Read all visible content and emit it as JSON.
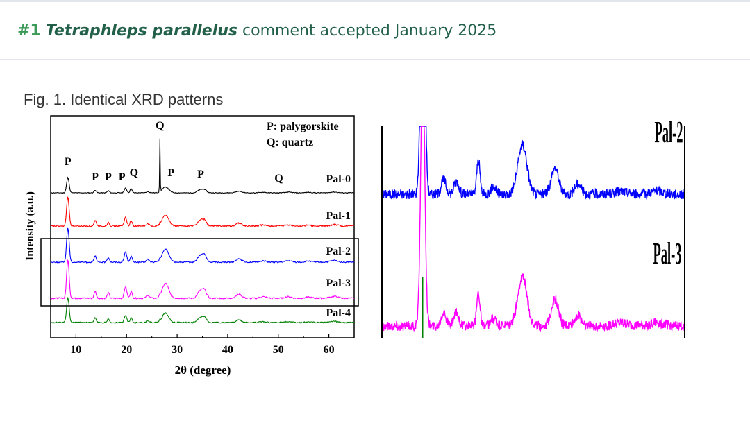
{
  "header": {
    "number": "#1",
    "species": "Tetraphleps parallelus",
    "rest": "comment accepted January 2025"
  },
  "figure": {
    "caption": "Fig. 1. Identical XRD patterns"
  },
  "chart_data": [
    {
      "type": "line",
      "xlabel": "2θ (degree)",
      "ylabel": "Intensity (a.u.)",
      "xlim": [
        5,
        65
      ],
      "xticks": [
        10,
        20,
        30,
        40,
        50,
        60
      ],
      "y_ticks_shown": false,
      "legend_text": [
        "P: palygorskite",
        "Q: quartz"
      ],
      "peak_labels": [
        {
          "label": "P",
          "two_theta": 8.4
        },
        {
          "label": "P",
          "two_theta": 13.8
        },
        {
          "label": "P",
          "two_theta": 16.4
        },
        {
          "label": "P",
          "two_theta": 19.8
        },
        {
          "label": "Q",
          "two_theta": 20.9
        },
        {
          "label": "Q",
          "two_theta": 26.6
        },
        {
          "label": "P",
          "two_theta": 27.7
        },
        {
          "label": "P",
          "two_theta": 35.2
        },
        {
          "label": "Q",
          "two_theta": 50.1
        }
      ],
      "series": [
        {
          "name": "Pal-0",
          "color": "#000000"
        },
        {
          "name": "Pal-1",
          "color": "#ff0000"
        },
        {
          "name": "Pal-2",
          "color": "#0000ff"
        },
        {
          "name": "Pal-3",
          "color": "#ff00ff"
        },
        {
          "name": "Pal-4",
          "color": "#008000"
        }
      ],
      "highlight_box": [
        "Pal-2",
        "Pal-3"
      ]
    },
    {
      "type": "line",
      "series": [
        {
          "name": "Pal-2",
          "color": "#0000ff"
        },
        {
          "name": "Pal-3",
          "color": "#ff00ff"
        }
      ]
    }
  ]
}
